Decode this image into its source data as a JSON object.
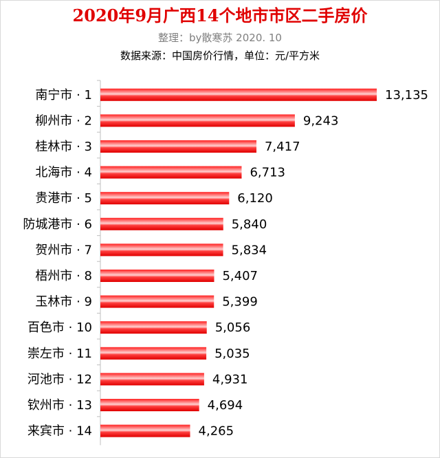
{
  "title": "2020年9月广西14个地市市区二手房价",
  "subtitle": "整理：by散寒苏  2020. 10",
  "source": "数据来源：中国房价行情，单位：元/平方米",
  "colors": {
    "bar": "#ff0000",
    "bar_highlight": "#ffd0d0",
    "title": "#e00000",
    "axis": "#7f7f7f",
    "grid": "#d9d9d9"
  },
  "chart_data": {
    "type": "bar",
    "orientation": "horizontal",
    "title": "2020年9月广西14个地市市区二手房价",
    "categories": [
      "南宁市 · 1",
      "柳州市 · 2",
      "桂林市 · 3",
      "北海市 · 4",
      "贵港市 · 5",
      "防城港市 · 6",
      "贺州市 · 7",
      "梧州市 · 8",
      "玉林市 · 9",
      "百色市 · 10",
      "崇左市 · 11",
      "河池市 · 12",
      "钦州市 · 13",
      "来宾市 · 14"
    ],
    "values": [
      13135,
      9243,
      7417,
      6713,
      6120,
      5840,
      5834,
      5407,
      5399,
      5056,
      5035,
      4931,
      4694,
      4265
    ],
    "value_labels": [
      "13,135",
      "9,243",
      "7,417",
      "6,713",
      "6,120",
      "5,840",
      "5,834",
      "5,407",
      "5,399",
      "5,056",
      "5,035",
      "4,931",
      "4,694",
      "4,265"
    ],
    "xlim": [
      0,
      13135
    ],
    "grid": true,
    "legend": "none"
  }
}
